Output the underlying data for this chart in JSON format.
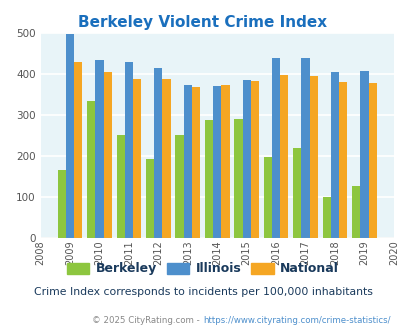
{
  "title": "Berkeley Violent Crime Index",
  "years": [
    2009,
    2010,
    2011,
    2012,
    2013,
    2014,
    2015,
    2016,
    2017,
    2018,
    2019
  ],
  "berkeley": [
    165,
    335,
    250,
    192,
    250,
    288,
    290,
    197,
    218,
    100,
    125
  ],
  "illinois": [
    498,
    435,
    428,
    414,
    372,
    370,
    384,
    438,
    438,
    405,
    408
  ],
  "national": [
    430,
    405,
    387,
    387,
    368,
    372,
    383,
    397,
    394,
    380,
    379
  ],
  "bar_colors": {
    "berkeley": "#8dc63f",
    "illinois": "#4d8fcc",
    "national": "#f5a623"
  },
  "xlim": [
    2008,
    2020
  ],
  "ylim": [
    0,
    500
  ],
  "yticks": [
    0,
    100,
    200,
    300,
    400,
    500
  ],
  "bg_color": "#e8f4f8",
  "grid_color": "#ffffff",
  "subtitle": "Crime Index corresponds to incidents per 100,000 inhabitants",
  "footer_text": "© 2025 CityRating.com - ",
  "footer_url": "https://www.cityrating.com/crime-statistics/",
  "title_color": "#1a6fbd",
  "legend_text_color": "#1a3a5c",
  "subtitle_color": "#1a3a5c",
  "footer_color": "#888888",
  "footer_url_color": "#4d8fcc"
}
